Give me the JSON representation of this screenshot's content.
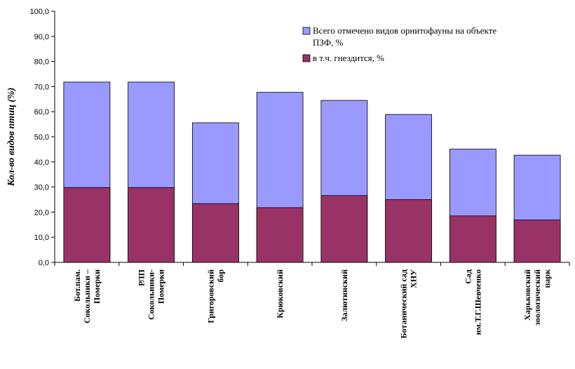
{
  "chart_data": {
    "type": "bar",
    "stacking": "overlay",
    "ylabel": "Кол-во видов птиц (%)",
    "ylim": [
      0,
      100
    ],
    "ytick_step": 10,
    "ytick_labels": [
      "0,0",
      "10,0",
      "20,0",
      "30,0",
      "40,0",
      "50,0",
      "60,0",
      "70,0",
      "80,0",
      "90,0",
      "100,0"
    ],
    "categories": [
      [
        "Бот.пам.",
        "Сокольники –",
        "Померки"
      ],
      [
        "РЛП",
        "Сокольники-",
        "Померки"
      ],
      [
        "Григоровский",
        "бор"
      ],
      [
        "Крюковский"
      ],
      [
        "Залютинский"
      ],
      [
        "Ботанический сад",
        "ХНУ"
      ],
      [
        "Сад",
        "им.Т.Г.Шевченко"
      ],
      [
        "Харьковский",
        "зоологический",
        "парк"
      ]
    ],
    "series": [
      {
        "name": "Всего отмечено видов орнитофауны на объекте ПЗФ, %",
        "legend_lines": [
          "Всего отмечено видов орнитофауны на объекте",
          "ПЗФ, %"
        ],
        "color": "#9999ff",
        "values": [
          71.8,
          71.8,
          55.6,
          67.7,
          64.5,
          58.9,
          45.1,
          42.7
        ]
      },
      {
        "name": "в т.ч. гнездится, %",
        "legend_lines": [
          "в т.ч. гнездится, %"
        ],
        "color": "#993366",
        "values": [
          29.8,
          29.8,
          23.4,
          21.8,
          26.6,
          25.0,
          18.5,
          16.9
        ]
      }
    ],
    "legend_position": "top-right",
    "grid": false
  }
}
